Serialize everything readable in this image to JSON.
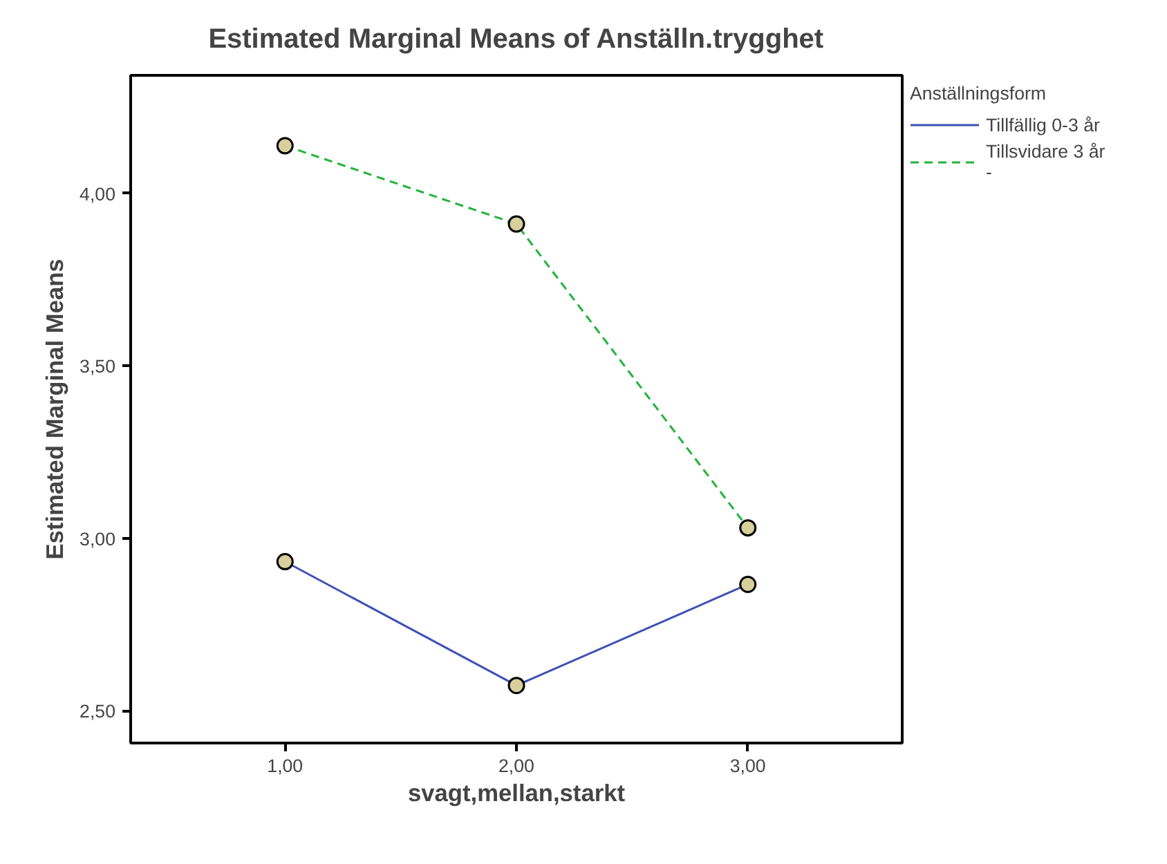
{
  "chart_data": {
    "type": "line",
    "title": "Estimated Marginal Means of Anställn.trygghet",
    "xlabel": "svagt,mellan,starkt",
    "ylabel": "Estimated Marginal Means",
    "legend_title": "Anställningsform",
    "x": [
      1,
      2,
      3
    ],
    "series": [
      {
        "name": "Tillfällig 0-3 år",
        "color": "#3f51b5",
        "values": [
          2.932,
          2.573,
          2.866
        ],
        "line_style": "solid"
      },
      {
        "name": "Tillsvidare 3 år -",
        "color": "#22b33a",
        "values": [
          4.138,
          3.911,
          3.03
        ],
        "line_style": "dashed"
      }
    ],
    "xlim": [
      0.333,
      3.667
    ],
    "ylim": [
      2.406,
      4.342
    ],
    "xticks": [
      {
        "value": 1,
        "label": "1,00"
      },
      {
        "value": 2,
        "label": "2,00"
      },
      {
        "value": 3,
        "label": "3,00"
      }
    ],
    "yticks": [
      {
        "value": 2.5,
        "label": "2,50"
      },
      {
        "value": 3,
        "label": "3,00"
      },
      {
        "value": 3.5,
        "label": "3,50"
      },
      {
        "value": 4,
        "label": "4,00"
      }
    ],
    "marker": "circle",
    "grid": false,
    "legend": "right"
  }
}
